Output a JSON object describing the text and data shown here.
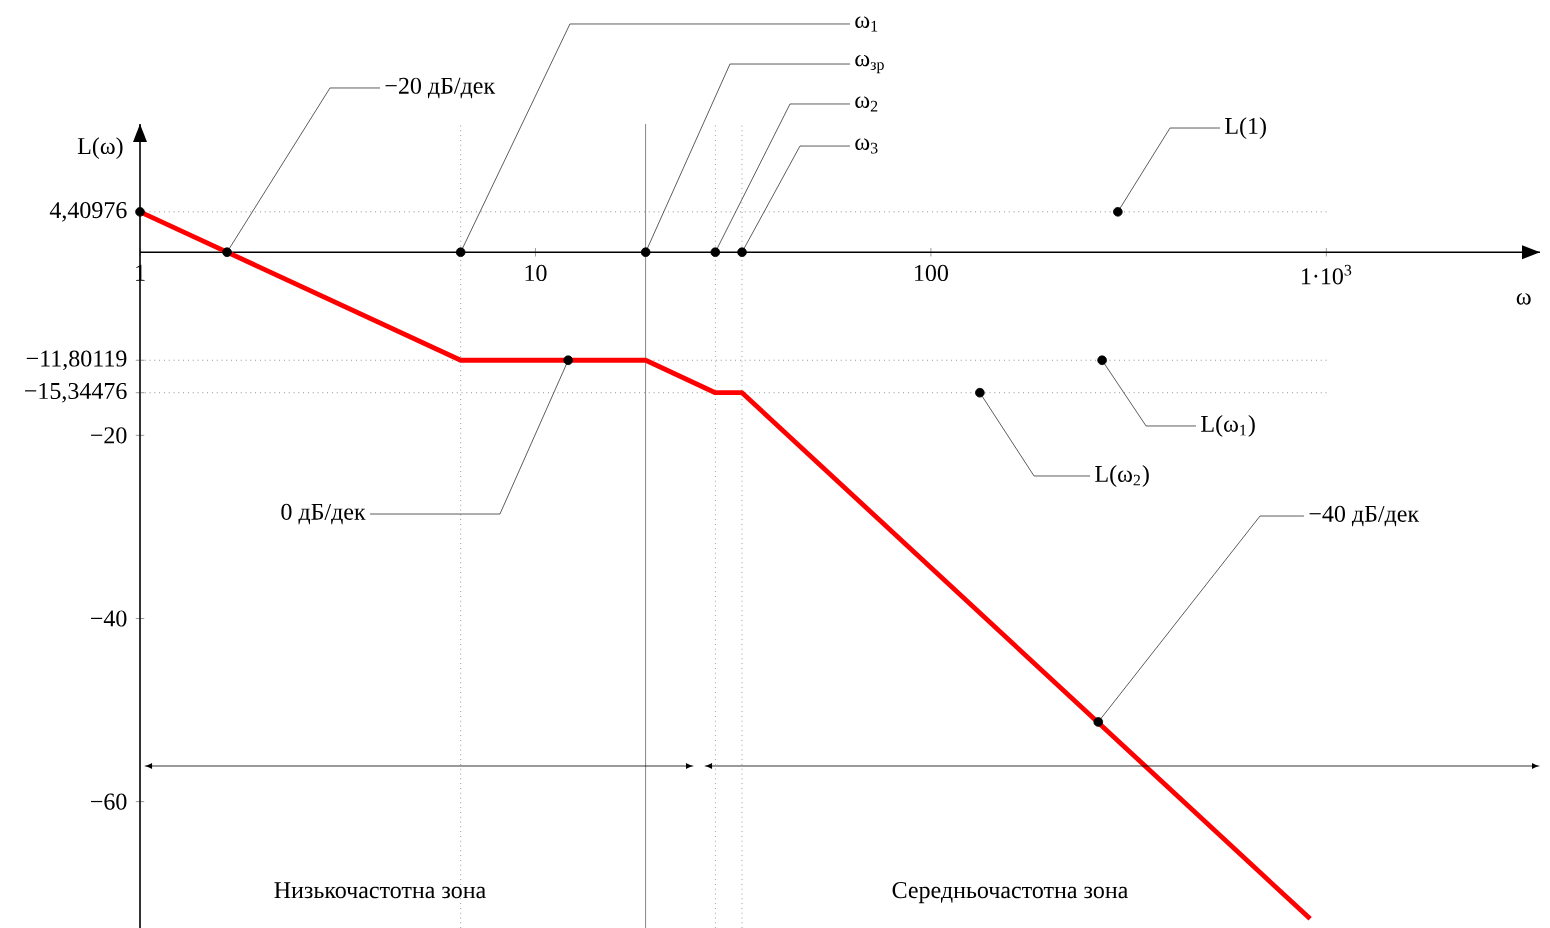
{
  "chart_data": {
    "type": "line",
    "xlabel": "ω",
    "ylabel": "L(ω)",
    "log": "x",
    "xlim": [
      1,
      3470
    ],
    "ylim": [
      -73.8,
      14
    ],
    "xticks": [
      1,
      10,
      100,
      {
        "value": 1000,
        "label": "1·10$^{3}$"
      }
    ],
    "yticks": [
      {
        "value": 4.40976,
        "label": "4,40976"
      },
      {
        "value": -11.80119,
        "label": "−11,80119"
      },
      {
        "value": -15.34476,
        "label": "−15,34476"
      },
      {
        "value": -20,
        "label": "−20"
      },
      {
        "value": -40,
        "label": "−40"
      },
      {
        "value": -60,
        "label": "−60"
      }
    ],
    "series": [
      {
        "color": "#ff0000",
        "line_style": "solid",
        "marker": "none",
        "x": [
          1,
          6.47,
          19,
          28.5,
          33.3,
          910
        ],
        "values": [
          4.40976,
          -11.80119,
          -11.80119,
          -15.34476,
          -15.34476,
          -72.8
        ]
      },
      {
        "type": "scatter",
        "color": "#000000",
        "marker": "circle",
        "x": [
          1,
          1.66,
          6.47,
          19,
          28.5,
          33.3,
          297,
          12.1,
          271,
          133,
          265
        ],
        "values": [
          4.40976,
          0,
          0,
          0,
          0,
          0,
          4.40976,
          -11.80119,
          -11.80119,
          -15.34476,
          -51.3
        ]
      }
    ],
    "ref_lines": [
      {
        "axis": "y",
        "value": 4.40976,
        "line_style": "dotted"
      },
      {
        "axis": "y",
        "value": -11.80119,
        "line_style": "dotted"
      },
      {
        "axis": "y",
        "value": -15.34476,
        "line_style": "dotted"
      },
      {
        "axis": "x",
        "value": 6.47,
        "line_style": "dotted"
      },
      {
        "axis": "x",
        "value": 19,
        "line_style": "solid"
      },
      {
        "axis": "x",
        "value": 28.5,
        "line_style": "dotted"
      },
      {
        "axis": "x",
        "value": 33.3,
        "line_style": "dotted"
      }
    ],
    "annotations": [
      {
        "text": "−20 дБ/дек",
        "x": 1.66,
        "y": 0
      },
      {
        "text": "ω$_{1}$",
        "x": 6.47,
        "y": 0
      },
      {
        "text": "ω$_{зр}$",
        "x": 19,
        "y": 0
      },
      {
        "text": "ω$_{2}$",
        "x": 28.5,
        "y": 0
      },
      {
        "text": "ω$_{3}$",
        "x": 33.3,
        "y": 0
      },
      {
        "text": "L(1)",
        "x": 297,
        "y": 4.40976
      },
      {
        "text": "0 дБ/дек",
        "x": 12.1,
        "y": -11.80119
      },
      {
        "text": "L(ω$_{1}$)",
        "x": 271,
        "y": -11.80119
      },
      {
        "text": "L(ω$_{2}$)",
        "x": 133,
        "y": -15.34476
      },
      {
        "text": "−40 дБ/дек",
        "x": 265,
        "y": -51.3
      },
      "Низькочастотна зона",
      "Середньочастотна зона"
    ]
  }
}
